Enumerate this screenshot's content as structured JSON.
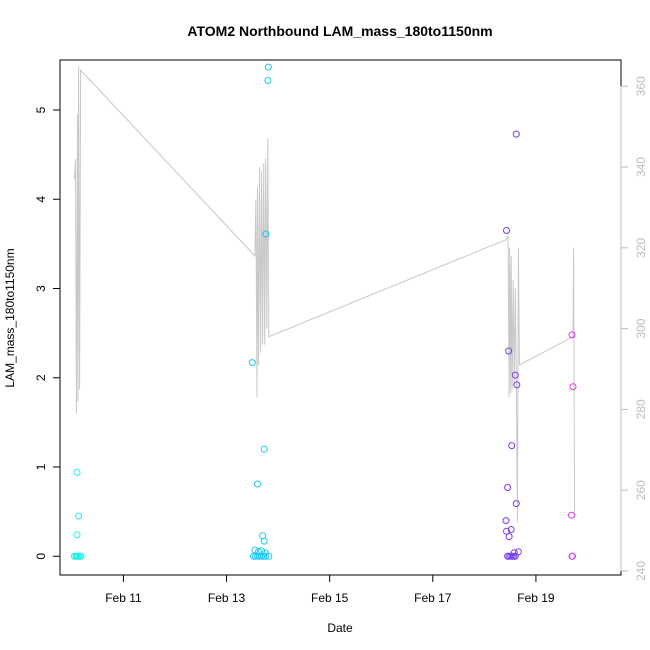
{
  "chart_data": {
    "type": "scatter",
    "title": "ATOM2 Northbound LAM_mass_180to1150nm",
    "xlabel": "Date",
    "ylabel": "LAM_mass_180to1150nm",
    "x_unit": "days in February",
    "xlim": [
      9.77,
      20.65
    ],
    "ylim": [
      -0.21,
      5.56
    ],
    "y2lim": [
      239.0,
      366.5
    ],
    "x_ticks": [
      {
        "value": 11,
        "label": "Feb 11"
      },
      {
        "value": 13,
        "label": "Feb 13"
      },
      {
        "value": 15,
        "label": "Feb 15"
      },
      {
        "value": 17,
        "label": "Feb 17"
      },
      {
        "value": 19,
        "label": "Feb 19"
      }
    ],
    "y_ticks": [
      {
        "value": 0,
        "label": "0"
      },
      {
        "value": 1,
        "label": "1"
      },
      {
        "value": 2,
        "label": "2"
      },
      {
        "value": 3,
        "label": "3"
      },
      {
        "value": 4,
        "label": "4"
      },
      {
        "value": 5,
        "label": "5"
      }
    ],
    "y2_ticks": [
      {
        "value": 240,
        "label": "240"
      },
      {
        "value": 260,
        "label": "260"
      },
      {
        "value": 280,
        "label": "280"
      },
      {
        "value": 300,
        "label": "300"
      },
      {
        "value": 320,
        "label": "320"
      },
      {
        "value": 340,
        "label": "340"
      },
      {
        "value": 360,
        "label": "360"
      }
    ],
    "grid": false,
    "legend": "none",
    "points": [
      {
        "x": 10.05,
        "y": 0.0,
        "color": "#1ef0e1"
      },
      {
        "x": 10.08,
        "y": 0.0,
        "color": "#1ef0e1"
      },
      {
        "x": 10.1,
        "y": 0.0,
        "color": "#1ef0e1"
      },
      {
        "x": 10.12,
        "y": 0.0,
        "color": "#1ef0e1"
      },
      {
        "x": 10.15,
        "y": 0.0,
        "color": "#1ef0e1"
      },
      {
        "x": 10.18,
        "y": 0.0,
        "color": "#1ef0e1"
      },
      {
        "x": 10.1,
        "y": 0.94,
        "color": "#1ef0e1"
      },
      {
        "x": 10.1,
        "y": 0.24,
        "color": "#1ef0e1"
      },
      {
        "x": 10.13,
        "y": 0.45,
        "color": "#1ef0e1"
      },
      {
        "x": 13.5,
        "y": 2.17,
        "color": "#1ec8f0"
      },
      {
        "x": 13.6,
        "y": 0.81,
        "color": "#1ec8f0"
      },
      {
        "x": 13.73,
        "y": 1.2,
        "color": "#1ec8f0"
      },
      {
        "x": 13.76,
        "y": 3.61,
        "color": "#1ec8f0"
      },
      {
        "x": 13.8,
        "y": 5.33,
        "color": "#1ec8f0"
      },
      {
        "x": 13.81,
        "y": 5.48,
        "color": "#1ec8f0"
      },
      {
        "x": 13.7,
        "y": 0.23,
        "color": "#1ec8f0"
      },
      {
        "x": 13.73,
        "y": 0.17,
        "color": "#1ec8f0"
      },
      {
        "x": 13.55,
        "y": 0.07,
        "color": "#1ec8f0"
      },
      {
        "x": 13.62,
        "y": 0.05,
        "color": "#1ec8f0"
      },
      {
        "x": 13.68,
        "y": 0.06,
        "color": "#1ec8f0"
      },
      {
        "x": 13.75,
        "y": 0.04,
        "color": "#1ec8f0"
      },
      {
        "x": 13.52,
        "y": 0.0,
        "color": "#1ec8f0"
      },
      {
        "x": 13.56,
        "y": 0.0,
        "color": "#1ec8f0"
      },
      {
        "x": 13.6,
        "y": 0.0,
        "color": "#1ec8f0"
      },
      {
        "x": 13.64,
        "y": 0.0,
        "color": "#1ec8f0"
      },
      {
        "x": 13.68,
        "y": 0.0,
        "color": "#1ec8f0"
      },
      {
        "x": 13.72,
        "y": 0.0,
        "color": "#1ec8f0"
      },
      {
        "x": 13.76,
        "y": 0.0,
        "color": "#1ec8f0"
      },
      {
        "x": 13.82,
        "y": 0.0,
        "color": "#1ec8f0"
      },
      {
        "x": 18.43,
        "y": 3.65,
        "color": "#7a3df0"
      },
      {
        "x": 18.47,
        "y": 2.3,
        "color": "#7a3df0"
      },
      {
        "x": 18.45,
        "y": 0.77,
        "color": "#7a3df0"
      },
      {
        "x": 18.42,
        "y": 0.4,
        "color": "#7a3df0"
      },
      {
        "x": 18.43,
        "y": 0.28,
        "color": "#7a3df0"
      },
      {
        "x": 18.48,
        "y": 0.22,
        "color": "#7a3df0"
      },
      {
        "x": 18.52,
        "y": 0.3,
        "color": "#7a3df0"
      },
      {
        "x": 18.53,
        "y": 1.24,
        "color": "#7a3df0"
      },
      {
        "x": 18.6,
        "y": 2.03,
        "color": "#7a3df0"
      },
      {
        "x": 18.63,
        "y": 1.92,
        "color": "#7a3df0"
      },
      {
        "x": 18.62,
        "y": 4.73,
        "color": "#7a3df0"
      },
      {
        "x": 18.62,
        "y": 0.59,
        "color": "#7a3df0"
      },
      {
        "x": 18.58,
        "y": 0.04,
        "color": "#7a3df0"
      },
      {
        "x": 18.66,
        "y": 0.05,
        "color": "#7a3df0"
      },
      {
        "x": 18.45,
        "y": 0.0,
        "color": "#7a3df0"
      },
      {
        "x": 18.48,
        "y": 0.0,
        "color": "#7a3df0"
      },
      {
        "x": 18.51,
        "y": 0.0,
        "color": "#7a3df0"
      },
      {
        "x": 18.54,
        "y": 0.0,
        "color": "#7a3df0"
      },
      {
        "x": 18.57,
        "y": 0.0,
        "color": "#7a3df0"
      },
      {
        "x": 18.6,
        "y": 0.0,
        "color": "#7a3df0"
      },
      {
        "x": 19.7,
        "y": 2.48,
        "color": "#d43df0"
      },
      {
        "x": 19.72,
        "y": 1.9,
        "color": "#d43df0"
      },
      {
        "x": 19.69,
        "y": 0.46,
        "color": "#d43df0"
      },
      {
        "x": 19.7,
        "y": 0.0,
        "color": "#d43df0"
      },
      {
        "x": 19.71,
        "y": 0.0,
        "color": "#d43df0"
      }
    ],
    "secondary_line": {
      "color": "#c8c8c8",
      "points": [
        [
          10.05,
          337
        ],
        [
          10.07,
          342
        ],
        [
          10.09,
          279
        ],
        [
          10.11,
          353
        ],
        [
          10.12,
          282
        ],
        [
          10.13,
          365
        ],
        [
          10.15,
          285
        ],
        [
          10.17,
          364
        ],
        [
          13.55,
          318
        ],
        [
          13.57,
          332
        ],
        [
          13.59,
          283
        ],
        [
          13.6,
          335
        ],
        [
          13.62,
          291
        ],
        [
          13.64,
          340
        ],
        [
          13.66,
          294
        ],
        [
          13.68,
          339
        ],
        [
          13.7,
          296
        ],
        [
          13.72,
          341
        ],
        [
          13.74,
          296
        ],
        [
          13.76,
          342
        ],
        [
          13.78,
          300
        ],
        [
          13.8,
          347
        ],
        [
          13.82,
          298
        ],
        [
          18.42,
          322
        ],
        [
          18.46,
          323
        ],
        [
          18.48,
          283
        ],
        [
          18.49,
          320
        ],
        [
          18.51,
          284
        ],
        [
          18.52,
          318
        ],
        [
          18.54,
          285
        ],
        [
          18.56,
          312
        ],
        [
          18.58,
          286
        ],
        [
          18.6,
          310
        ],
        [
          18.62,
          288
        ],
        [
          18.64,
          252
        ],
        [
          18.66,
          320
        ],
        [
          18.68,
          291
        ],
        [
          19.72,
          298
        ],
        [
          19.73,
          320
        ],
        [
          19.75,
          253
        ]
      ]
    }
  }
}
